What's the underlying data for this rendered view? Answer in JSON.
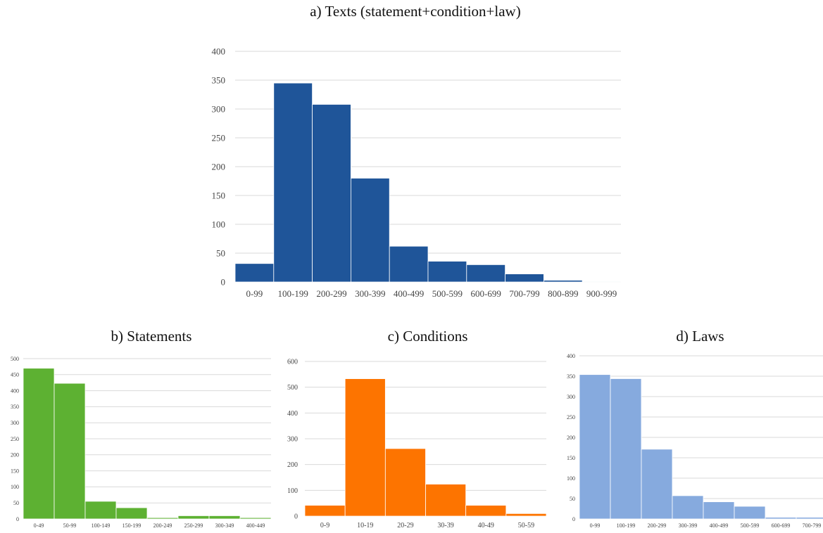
{
  "chart_data": [
    {
      "id": "a",
      "type": "bar",
      "title": "a) Texts (statement+condition+law)",
      "categories": [
        "0-99",
        "100-199",
        "200-299",
        "300-399",
        "400-499",
        "500-599",
        "600-699",
        "700-799",
        "800-899",
        "900-999"
      ],
      "values": [
        32,
        345,
        308,
        180,
        62,
        36,
        30,
        14,
        3,
        1
      ],
      "ylim": [
        0,
        400
      ],
      "yticks": [
        0,
        50,
        100,
        150,
        200,
        250,
        300,
        350,
        400
      ],
      "grid": true,
      "color": "#1f5599"
    },
    {
      "id": "b",
      "type": "bar",
      "title": "b) Statements",
      "categories": [
        "0-49",
        "50-99",
        "100-149",
        "150-199",
        "200-249",
        "250-299",
        "300-349",
        "400-449"
      ],
      "values": [
        470,
        423,
        55,
        35,
        4,
        10,
        10,
        4
      ],
      "ylim": [
        0,
        500
      ],
      "yticks": [
        0,
        50,
        100,
        150,
        200,
        250,
        300,
        350,
        400,
        450,
        500
      ],
      "grid": true,
      "color": "#5db132"
    },
    {
      "id": "c",
      "type": "bar",
      "title": "c) Conditions",
      "categories": [
        "0-9",
        "10-19",
        "20-29",
        "30-39",
        "40-49",
        "50-59"
      ],
      "values": [
        42,
        533,
        262,
        124,
        42,
        10
      ],
      "ylim": [
        0,
        600
      ],
      "yticks": [
        0,
        100,
        200,
        300,
        400,
        500,
        600
      ],
      "grid": true,
      "color": "#fd7400"
    },
    {
      "id": "d",
      "type": "bar",
      "title": "d) Laws",
      "categories": [
        "0-99",
        "100-199",
        "200-299",
        "300-399",
        "400-499",
        "500-599",
        "600-699",
        "700-799"
      ],
      "values": [
        354,
        344,
        171,
        57,
        42,
        31,
        4,
        4
      ],
      "ylim": [
        0,
        400
      ],
      "yticks": [
        0,
        50,
        100,
        150,
        200,
        250,
        300,
        350,
        400
      ],
      "grid": true,
      "color": "#86aade"
    }
  ]
}
